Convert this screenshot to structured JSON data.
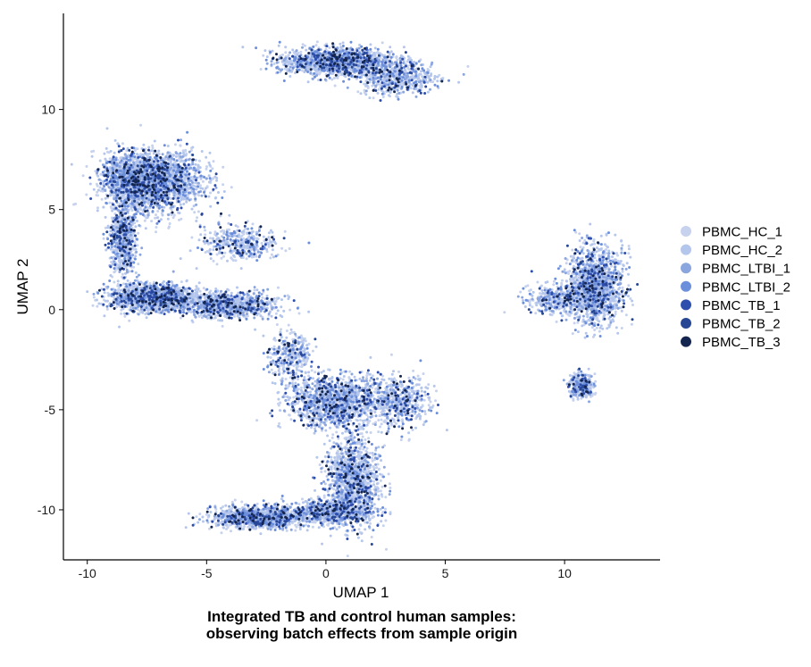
{
  "chart_data": {
    "type": "scatter",
    "title": "",
    "xlabel": "UMAP 1",
    "ylabel": "UMAP 2",
    "xlim": [
      -11,
      14
    ],
    "ylim": [
      -12.5,
      14.8
    ],
    "x_ticks": [
      -10,
      -5,
      0,
      5,
      10
    ],
    "y_ticks": [
      -10,
      -5,
      0,
      5,
      10
    ],
    "grid": false,
    "legend_position": "right",
    "series": [
      {
        "name": "PBMC_HC_1",
        "color": "#C6D2EE"
      },
      {
        "name": "PBMC_HC_2",
        "color": "#B4C6EC"
      },
      {
        "name": "PBMC_LTBI_1",
        "color": "#8BA5DE"
      },
      {
        "name": "PBMC_LTBI_2",
        "color": "#6C8FDC"
      },
      {
        "name": "PBMC_TB_1",
        "color": "#2E4EAE"
      },
      {
        "name": "PBMC_TB_2",
        "color": "#274694"
      },
      {
        "name": "PBMC_TB_3",
        "color": "#14264F"
      }
    ],
    "clusters": [
      {
        "x": -7.2,
        "y": 6.4,
        "sx": 1.6,
        "sy": 1.2,
        "n": 2200
      },
      {
        "x": -8.3,
        "y": 6.5,
        "sx": 0.9,
        "sy": 0.9,
        "n": 700
      },
      {
        "x": -8.5,
        "y": 3.6,
        "sx": 0.45,
        "sy": 1.5,
        "n": 700
      },
      {
        "x": -7.2,
        "y": 0.6,
        "sx": 1.5,
        "sy": 0.55,
        "n": 1500
      },
      {
        "x": -4.0,
        "y": 0.2,
        "sx": 1.6,
        "sy": 0.5,
        "n": 900
      },
      {
        "x": -3.6,
        "y": 3.3,
        "sx": 1.3,
        "sy": 0.7,
        "n": 400
      },
      {
        "x": 0.5,
        "y": 12.4,
        "sx": 1.9,
        "sy": 0.55,
        "n": 1500
      },
      {
        "x": 2.9,
        "y": 11.6,
        "sx": 1.3,
        "sy": 0.7,
        "n": 600
      },
      {
        "x": 11.3,
        "y": 1.2,
        "sx": 0.9,
        "sy": 1.5,
        "n": 1500
      },
      {
        "x": 9.8,
        "y": 0.5,
        "sx": 1.1,
        "sy": 0.6,
        "n": 400
      },
      {
        "x": 10.7,
        "y": -3.8,
        "sx": 0.4,
        "sy": 0.5,
        "n": 350
      },
      {
        "x": 0.4,
        "y": -4.6,
        "sx": 1.6,
        "sy": 1.0,
        "n": 1400
      },
      {
        "x": 3.1,
        "y": -4.6,
        "sx": 1.0,
        "sy": 1.0,
        "n": 500
      },
      {
        "x": 1.1,
        "y": -8.6,
        "sx": 0.9,
        "sy": 1.8,
        "n": 1300
      },
      {
        "x": -2.8,
        "y": -10.4,
        "sx": 1.6,
        "sy": 0.45,
        "n": 1100
      },
      {
        "x": 0.1,
        "y": -10.1,
        "sx": 1.5,
        "sy": 0.45,
        "n": 700
      },
      {
        "x": -1.5,
        "y": -2.3,
        "sx": 0.7,
        "sy": 1.0,
        "n": 350
      }
    ]
  },
  "caption": {
    "line1": "Integrated TB and control human samples:",
    "line2": "observing batch effects from sample origin"
  }
}
